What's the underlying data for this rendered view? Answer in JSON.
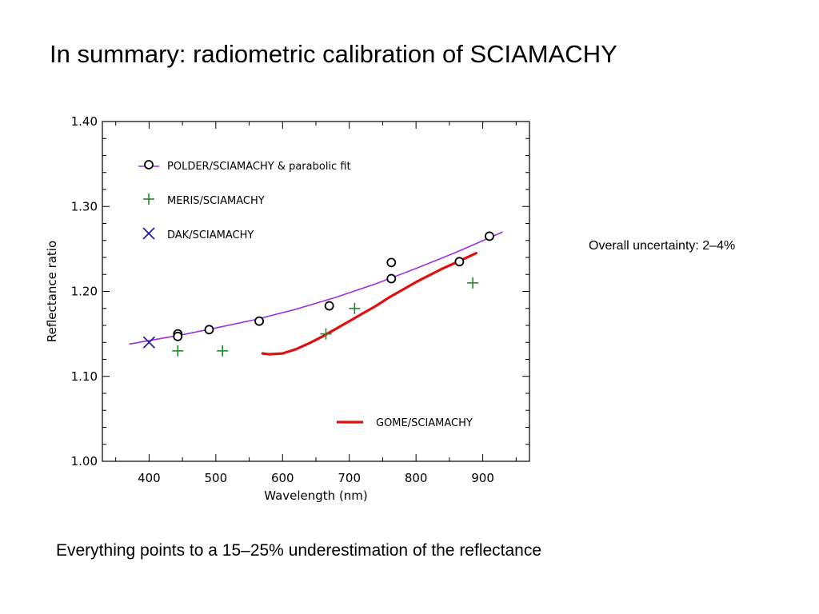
{
  "slide": {
    "title": "In summary: radiometric calibration of SCIAMACHY",
    "uncertainty_note": "Overall uncertainty: 2–4%",
    "footer": "Everything points to a 15–25% underestimation of the reflectance"
  },
  "chart_data": {
    "type": "scatter",
    "xlabel": "Wavelength (nm)",
    "ylabel": "Reflectance ratio",
    "xlim": [
      330,
      970
    ],
    "ylim": [
      1.0,
      1.4
    ],
    "x_ticks": [
      400,
      500,
      600,
      700,
      800,
      900
    ],
    "x_tick_labels": [
      "400",
      "500",
      "600",
      "700",
      "800",
      "900"
    ],
    "y_ticks": [
      1.0,
      1.1,
      1.2,
      1.3,
      1.4
    ],
    "y_tick_labels": [
      "1.00",
      "1.10",
      "1.20",
      "1.30",
      "1.40"
    ],
    "x_minor_step": 50,
    "y_minor_step": 0.02,
    "grid": false,
    "series": [
      {
        "name": "POLDER/SCIAMACHY & parabolic fit",
        "marker": "circle",
        "color": "#000000",
        "x": [
          443,
          443,
          490,
          565,
          670,
          763,
          763,
          865,
          910
        ],
        "y": [
          1.15,
          1.147,
          1.155,
          1.165,
          1.183,
          1.234,
          1.215,
          1.235,
          1.265
        ],
        "fit": {
          "color": "#9b30e0",
          "x": [
            370,
            450,
            500,
            560,
            620,
            680,
            740,
            800,
            860,
            930
          ],
          "y": [
            1.138,
            1.149,
            1.157,
            1.167,
            1.179,
            1.193,
            1.209,
            1.227,
            1.246,
            1.27
          ]
        }
      },
      {
        "name": "MERIS/SCIAMACHY",
        "marker": "plus",
        "color": "#1f8a2a",
        "x": [
          443,
          510,
          665,
          708,
          885
        ],
        "y": [
          1.13,
          1.13,
          1.15,
          1.18,
          1.21
        ]
      },
      {
        "name": "DAK/SCIAMACHY",
        "marker": "x",
        "color": "#1a1aa0",
        "x": [
          400
        ],
        "y": [
          1.14
        ]
      },
      {
        "name": "GOME/SCIAMACHY",
        "marker": "line",
        "color": "#e01010",
        "x": [
          570,
          580,
          600,
          620,
          640,
          660,
          680,
          700,
          720,
          740,
          760,
          780,
          800,
          820,
          840,
          860,
          890
        ],
        "y": [
          1.127,
          1.126,
          1.127,
          1.132,
          1.139,
          1.147,
          1.156,
          1.165,
          1.174,
          1.183,
          1.193,
          1.202,
          1.211,
          1.219,
          1.227,
          1.234,
          1.245
        ]
      }
    ],
    "legend": {
      "placement": "top-left",
      "entries": [
        "POLDER/SCIAMACHY & parabolic fit",
        "MERIS/SCIAMACHY",
        "DAK/SCIAMACHY"
      ],
      "separate_entry": "GOME/SCIAMACHY",
      "separate_placement": "bottom-right"
    }
  }
}
